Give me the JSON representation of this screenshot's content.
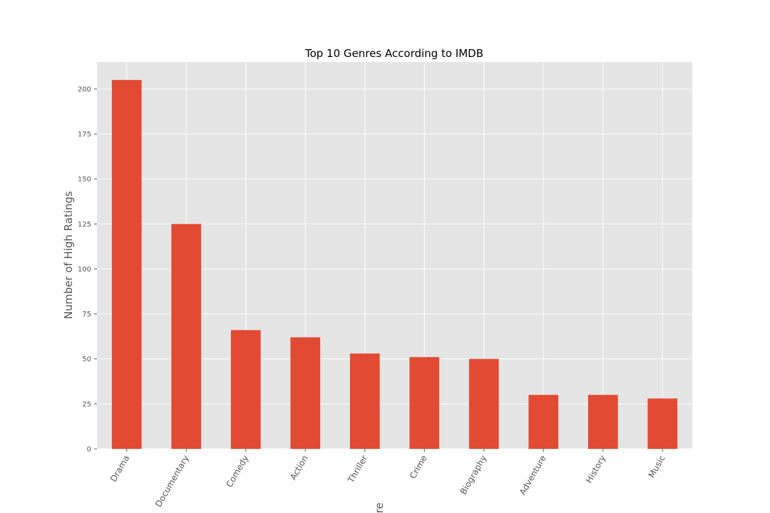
{
  "chart_data": {
    "type": "bar",
    "title": "Top 10 Genres According to IMDB",
    "xlabel": "Genre",
    "ylabel": "Number of High Ratings",
    "categories": [
      "Drama",
      "Documentary",
      "Comedy",
      "Action",
      "Thriller",
      "Crime",
      "Biography",
      "Adventure",
      "History",
      "Music"
    ],
    "values": [
      205,
      125,
      66,
      62,
      53,
      51,
      50,
      30,
      30,
      28
    ],
    "ylim": [
      0,
      215
    ],
    "yticks": [
      "0",
      "25",
      "50",
      "75",
      "100",
      "125",
      "150",
      "175",
      "200"
    ],
    "grid": true,
    "legend": "none",
    "colors": {
      "bar": "#e24a33",
      "plot_background": "#e5e5e5",
      "grid": "#ffffff"
    }
  }
}
